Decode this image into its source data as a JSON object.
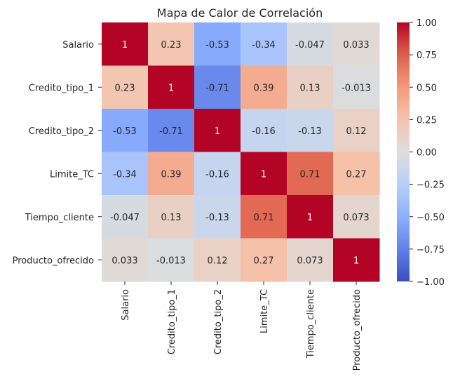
{
  "chart_data": {
    "type": "heatmap",
    "title": "Mapa de Calor de Correlación",
    "xlabel": "",
    "ylabel": "",
    "row_labels": [
      "Salario",
      "Credito_tipo_1",
      "Credito_tipo_2",
      "Limite_TC",
      "Tiempo_cliente",
      "Producto_ofrecido"
    ],
    "col_labels": [
      "Salario",
      "Credito_tipo_1",
      "Credito_tipo_2",
      "Limite_TC",
      "Tiempo_cliente",
      "Producto_ofrecido"
    ],
    "values": [
      [
        1,
        0.23,
        -0.53,
        -0.34,
        -0.047,
        0.033
      ],
      [
        0.23,
        1,
        -0.71,
        0.39,
        0.13,
        -0.013
      ],
      [
        -0.53,
        -0.71,
        1,
        -0.16,
        -0.13,
        0.12
      ],
      [
        -0.34,
        0.39,
        -0.16,
        1,
        0.71,
        0.27
      ],
      [
        -0.047,
        0.13,
        -0.13,
        0.71,
        1,
        0.073
      ],
      [
        0.033,
        -0.013,
        0.12,
        0.27,
        0.073,
        1
      ]
    ],
    "cell_labels": [
      [
        "1",
        "0.23",
        "-0.53",
        "-0.34",
        "-0.047",
        "0.033"
      ],
      [
        "0.23",
        "1",
        "-0.71",
        "0.39",
        "0.13",
        "-0.013"
      ],
      [
        "-0.53",
        "-0.71",
        "1",
        "-0.16",
        "-0.13",
        "0.12"
      ],
      [
        "-0.34",
        "0.39",
        "-0.16",
        "1",
        "0.71",
        "0.27"
      ],
      [
        "-0.047",
        "0.13",
        "-0.13",
        "0.71",
        "1",
        "0.073"
      ],
      [
        "0.033",
        "-0.013",
        "0.12",
        "0.27",
        "0.073",
        "1"
      ]
    ],
    "colormap": "coolwarm",
    "vmin": -1.0,
    "vmax": 1.0,
    "colorbar_ticks": [
      1.0,
      0.75,
      0.5,
      0.25,
      0.0,
      -0.25,
      -0.5,
      -0.75,
      -1.0
    ],
    "colorbar_tick_labels": [
      "1.00",
      "0.75",
      "0.50",
      "0.25",
      "0.00",
      "−0.25",
      "−0.50",
      "−0.75",
      "−1.00"
    ],
    "grid": false
  }
}
